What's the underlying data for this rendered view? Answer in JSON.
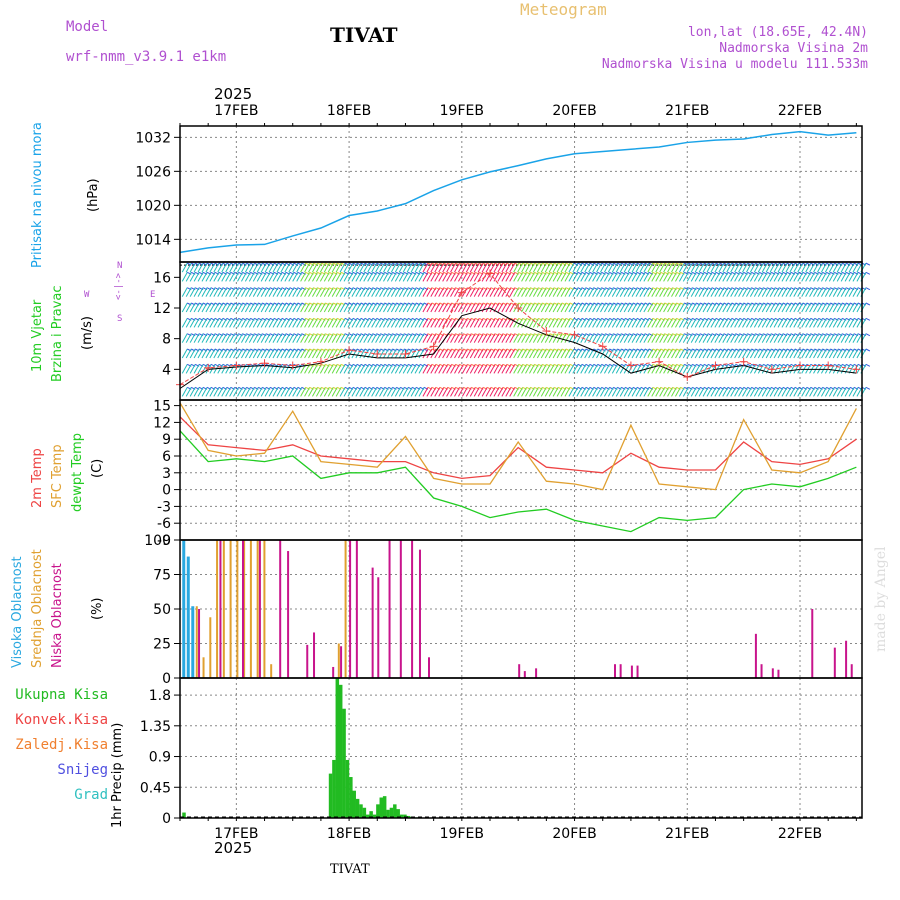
{
  "header": {
    "model_label": "Model",
    "model_name": "wrf-nmm_v3.9.1 e1km",
    "station": "TIVAT",
    "app_title": "Meteogram",
    "lonlat": "lon,lat (18.65E, 42.4N)",
    "altitude": "Nadmorska Visina 2m",
    "model_altitude": "Nadmorska Visina u modelu 111.533m",
    "year_top": "2025",
    "year_bottom": "2025",
    "station_bottom": "TIVAT",
    "watermark": "made by Angel"
  },
  "colors": {
    "pressure": "#1aa3e8",
    "t2m": "#ee4444",
    "tsfc": "#e0a030",
    "dewpt": "#22cc22",
    "cloud_high": "#2aa8e0",
    "cloud_mid": "#e0a030",
    "cloud_low": "#c8148c",
    "precip": "#22bb22",
    "label_purple": "#b050d0"
  },
  "axis_days": [
    "17FEB",
    "18FEB",
    "19FEB",
    "20FEB",
    "21FEB",
    "22FEB"
  ],
  "panel_labels": {
    "pressure": [
      "Pritisak na nivou mora",
      "(hPa)"
    ],
    "wind": [
      "10m Vjetar",
      "Brzina i Pravac",
      "(m/s)"
    ],
    "wind_compass": [
      "N",
      "<-|->",
      "S",
      "W",
      "E"
    ],
    "temp": [
      "2m Temp",
      "SFC Temp",
      "dewpt Temp",
      "(C)"
    ],
    "cloud": [
      "Visoka Oblacnost",
      "Srednja Oblacnost",
      "Niska Oblacnost",
      "(%)"
    ],
    "precip_legend": [
      "Ukupna Kisa",
      "Konvek.Kisa",
      "Zaledj.Kisa",
      "Snijeg",
      "Grad"
    ],
    "precip_unit": "1hr Precip (mm)"
  },
  "chart_data": [
    {
      "type": "line",
      "title": "",
      "ylabel": "(hPa)",
      "ylim": [
        1010,
        1034
      ],
      "yticks": [
        "1014",
        "1020",
        "1026",
        "1032"
      ],
      "x_days": [
        16.5,
        16.75,
        17.0,
        17.25,
        17.5,
        17.75,
        18.0,
        18.25,
        18.5,
        18.75,
        19.0,
        19.25,
        19.5,
        19.75,
        20.0,
        20.25,
        20.5,
        20.75,
        21.0,
        21.25,
        21.5,
        21.75,
        22.0,
        22.25,
        22.5
      ],
      "series": [
        {
          "values": [
            1011.7,
            1012.5,
            1013.0,
            1013.1,
            1014.6,
            1016.0,
            1018.2,
            1019.0,
            1020.3,
            1022.6,
            1024.5,
            1025.9,
            1027.0,
            1028.2,
            1029.1,
            1029.5,
            1029.9,
            1030.3,
            1031.1,
            1031.5,
            1031.7,
            1032.5,
            1033.0,
            1032.4,
            1032.8
          ]
        }
      ]
    },
    {
      "type": "line",
      "title": "",
      "ylabel": "(m/s)",
      "ylim": [
        0,
        18
      ],
      "yticks": [
        "4",
        "8",
        "12",
        "16"
      ],
      "x_days": [
        16.5,
        16.75,
        17.0,
        17.25,
        17.5,
        17.75,
        18.0,
        18.25,
        18.5,
        18.75,
        19.0,
        19.25,
        19.5,
        19.75,
        20.0,
        20.25,
        20.5,
        20.75,
        21.0,
        21.25,
        21.5,
        21.75,
        22.0,
        22.25,
        22.5
      ],
      "series": [
        {
          "values": [
            1.5,
            4.0,
            4.3,
            4.5,
            4.2,
            4.8,
            6.0,
            5.5,
            5.5,
            6.0,
            11.0,
            12.0,
            10.0,
            8.5,
            7.5,
            6.0,
            3.5,
            4.5,
            3.0,
            4.0,
            4.5,
            3.5,
            4.0,
            4.0,
            3.5
          ]
        },
        {
          "values": [
            2.0,
            4.2,
            4.5,
            4.8,
            4.5,
            5.0,
            6.5,
            6.0,
            6.0,
            7.0,
            14.0,
            16.5,
            12.0,
            9.0,
            8.5,
            7.0,
            4.5,
            5.0,
            3.0,
            4.5,
            5.0,
            4.0,
            4.5,
            4.5,
            4.0
          ]
        }
      ]
    },
    {
      "type": "line",
      "title": "",
      "ylabel": "(C)",
      "ylim": [
        -9,
        16
      ],
      "yticks": [
        "-9",
        "-6",
        "-3",
        "0",
        "3",
        "6",
        "9",
        "12",
        "15"
      ],
      "x_days": [
        16.5,
        16.75,
        17.0,
        17.25,
        17.5,
        17.75,
        18.0,
        18.25,
        18.5,
        18.75,
        19.0,
        19.25,
        19.5,
        19.75,
        20.0,
        20.25,
        20.5,
        20.75,
        21.0,
        21.25,
        21.5,
        21.75,
        22.0,
        22.25,
        22.5
      ],
      "series": [
        {
          "name": "2m Temp",
          "values": [
            13.0,
            8.0,
            7.5,
            7.0,
            8.0,
            6.0,
            5.5,
            5.0,
            5.0,
            3.0,
            2.0,
            2.5,
            7.5,
            4.0,
            3.5,
            3.0,
            6.5,
            4.0,
            3.5,
            3.5,
            8.5,
            5.0,
            4.5,
            5.5,
            9.0
          ]
        },
        {
          "name": "SFC Temp",
          "values": [
            15.5,
            7.0,
            6.0,
            6.5,
            14.0,
            5.0,
            4.5,
            4.0,
            9.5,
            2.0,
            1.0,
            1.0,
            8.5,
            1.5,
            1.0,
            0.0,
            11.5,
            1.0,
            0.5,
            0.0,
            12.5,
            3.5,
            3.0,
            5.0,
            14.5
          ]
        },
        {
          "name": "dewpt Temp",
          "values": [
            10.5,
            5.0,
            5.5,
            5.0,
            6.0,
            2.0,
            3.0,
            3.0,
            4.0,
            -1.5,
            -3.0,
            -5.0,
            -4.0,
            -3.5,
            -5.5,
            -6.5,
            -7.5,
            -5.0,
            -5.5,
            -5.0,
            0.0,
            1.0,
            0.5,
            2.0,
            4.0
          ]
        }
      ]
    },
    {
      "type": "bar",
      "title": "",
      "ylabel": "(%)",
      "ylim": [
        0,
        100
      ],
      "yticks": [
        "0",
        "25",
        "50",
        "75",
        "100"
      ],
      "series": [
        {
          "name": "Visoka Oblacnost",
          "x": [
            16.52,
            16.56,
            16.6
          ],
          "values": [
            100,
            88,
            52
          ]
        },
        {
          "name": "Srednja Oblacnost",
          "x": [
            16.64,
            16.7,
            16.76,
            16.82,
            16.88,
            16.94,
            17.0,
            17.06,
            17.12,
            17.18,
            17.24,
            17.3,
            17.9,
            17.96
          ],
          "values": [
            52,
            15,
            44,
            100,
            100,
            100,
            100,
            100,
            100,
            100,
            100,
            10,
            25,
            100
          ]
        },
        {
          "name": "Niska Oblacnost",
          "x": [
            16.66,
            16.85,
            17.05,
            17.2,
            17.38,
            17.45,
            17.62,
            17.68,
            17.85,
            17.92,
            18.0,
            18.06,
            18.2,
            18.25,
            18.35,
            18.45,
            18.55,
            18.62,
            18.7,
            19.5,
            19.55,
            19.65,
            20.35,
            20.4,
            20.5,
            20.55,
            21.6,
            21.65,
            21.75,
            21.8,
            22.1,
            22.3,
            22.4,
            22.45
          ],
          "values": [
            50,
            100,
            100,
            100,
            100,
            92,
            24,
            33,
            8,
            23,
            100,
            100,
            80,
            73,
            100,
            100,
            100,
            93,
            15,
            10,
            5,
            7,
            10,
            10,
            9,
            9,
            32,
            10,
            7,
            6,
            50,
            22,
            27,
            10
          ]
        }
      ]
    },
    {
      "type": "bar",
      "title": "",
      "ylabel": "1hr Precip (mm)",
      "ylim": [
        0,
        2.05
      ],
      "yticks": [
        "0",
        "0.45",
        "0.9",
        "1.35",
        "1.8"
      ],
      "series": [
        {
          "name": "Ukupna Kisa",
          "x": [
            16.52,
            17.82,
            17.85,
            17.88,
            17.91,
            17.94,
            17.97,
            18.0,
            18.03,
            18.06,
            18.09,
            18.12,
            18.15,
            18.18,
            18.21,
            18.24,
            18.27,
            18.3,
            18.33,
            18.36,
            18.39,
            18.42,
            18.45,
            18.48,
            18.51,
            18.54,
            18.57,
            18.6
          ],
          "values": [
            0.08,
            0.65,
            0.85,
            2.05,
            1.95,
            1.6,
            0.85,
            0.6,
            0.4,
            0.28,
            0.2,
            0.15,
            0.05,
            0.1,
            0.05,
            0.2,
            0.3,
            0.32,
            0.12,
            0.15,
            0.2,
            0.13,
            0.05,
            0.05,
            0.03,
            0.02,
            0.01,
            0.01
          ]
        }
      ]
    }
  ]
}
